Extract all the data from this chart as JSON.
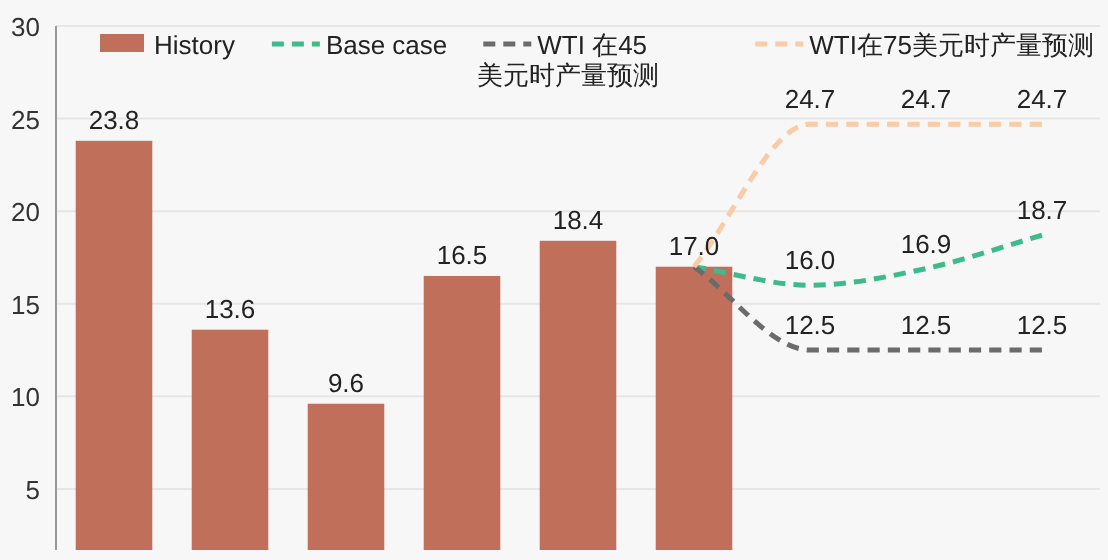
{
  "chart_data": {
    "type": "bar",
    "categories": [
      null,
      null,
      null,
      null,
      null,
      null,
      null,
      null,
      null
    ],
    "ylim": [
      1.7,
      30
    ],
    "yticks": [
      5,
      10,
      15,
      20,
      25,
      30
    ],
    "grid": "y",
    "legend": "top",
    "series": [
      {
        "name": "History",
        "color": "#c0705a",
        "values": [
          23.8,
          13.6,
          9.6,
          16.5,
          18.4,
          17.0,
          null,
          null,
          null
        ],
        "value_labels": [
          "23.8",
          "13.6",
          "9.6",
          "16.5",
          "18.4",
          "17.0",
          null,
          null,
          null
        ]
      },
      {
        "name": "Base case",
        "type": "line",
        "line_style": "dashed",
        "color": "#3dbb8a",
        "values": [
          null,
          null,
          null,
          null,
          null,
          17.0,
          16.0,
          16.9,
          18.7
        ],
        "value_labels": [
          null,
          null,
          null,
          null,
          null,
          null,
          "16.0",
          "16.9",
          "18.7"
        ]
      },
      {
        "name": "WTI 在45美元时产量预测",
        "type": "line",
        "line_style": "dashed",
        "color": "#6b6b6b",
        "values": [
          null,
          null,
          null,
          null,
          null,
          17.0,
          12.5,
          12.5,
          12.5
        ],
        "value_labels": [
          null,
          null,
          null,
          null,
          null,
          null,
          "12.5",
          "12.5",
          "12.5"
        ]
      },
      {
        "name": "WTI在75美元时产量预测",
        "type": "line",
        "line_style": "dashed",
        "color": "#f9cba6",
        "values": [
          null,
          null,
          null,
          null,
          null,
          17.0,
          24.7,
          24.7,
          24.7
        ],
        "value_labels": [
          null,
          null,
          null,
          null,
          null,
          null,
          "24.7",
          "24.7",
          "24.7"
        ]
      }
    ]
  }
}
